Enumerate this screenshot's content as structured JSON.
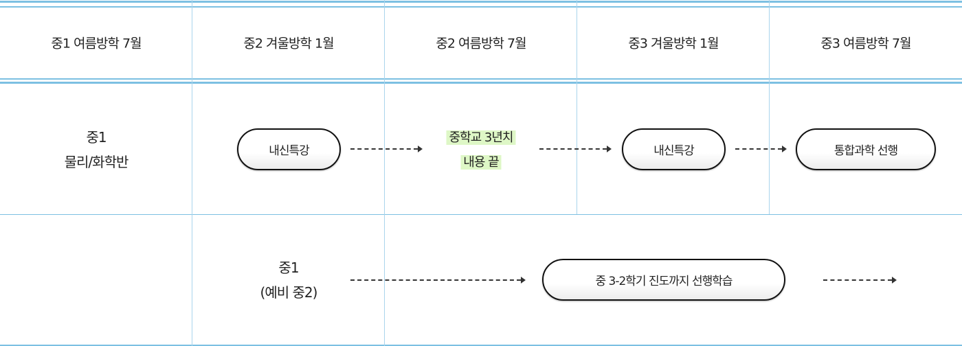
{
  "header": [
    "중1 여름방학 7월",
    "중2 겨울방학 1월",
    "중2 여름방학 7월",
    "중3 겨울방학 1월",
    "중3 여름방학 7월"
  ],
  "row1": {
    "label": [
      "중1",
      "물리/화학반"
    ],
    "steps": [
      "내신특강",
      "중학교 3년치",
      "내용 끝",
      "내신특강",
      "통합과학 선행"
    ]
  },
  "row2": {
    "label": [
      "중1",
      "(예비 중2)"
    ],
    "step": "중 3-2학기 진도까지 선행학습"
  },
  "colors": {
    "grid": "#7cc0e2",
    "highlight": "#def7c6"
  }
}
